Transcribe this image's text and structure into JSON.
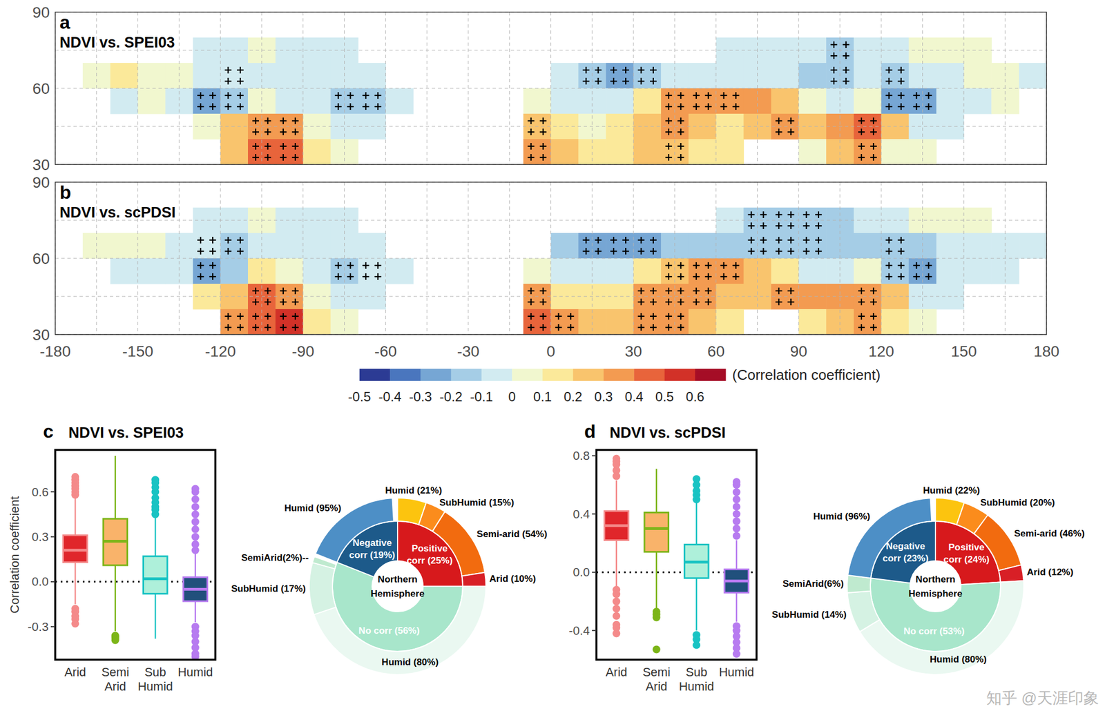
{
  "watermark": "知乎 @天涯印象",
  "colorbar": {
    "label": "(Correlation coefficient)",
    "range": [
      -0.5,
      0.7
    ],
    "ticks": [
      -0.5,
      -0.4,
      -0.3,
      -0.2,
      -0.1,
      0,
      0.1,
      0.2,
      0.3,
      0.4,
      0.5,
      0.6
    ],
    "colors": [
      "#2c3b94",
      "#4a76be",
      "#76a6d4",
      "#a5cde6",
      "#d2ebf1",
      "#f1f7cf",
      "#fbe99a",
      "#f9c46d",
      "#f39b51",
      "#e8643b",
      "#d23128",
      "#a50d26"
    ]
  },
  "chart_data": [
    {
      "type": "heatmap",
      "label": "a",
      "title": "NDVI vs. SPEI03",
      "cell_lon": [
        -180,
        -170,
        -160,
        -150,
        -140,
        -130,
        -120,
        -110,
        -100,
        -90,
        -80,
        -70,
        -60,
        -50,
        -40,
        -30,
        -20,
        -10,
        0,
        10,
        20,
        30,
        40,
        50,
        60,
        70,
        80,
        90,
        100,
        110,
        120,
        130,
        140,
        150,
        160,
        170
      ],
      "cell_lat": [
        80,
        70,
        60,
        50,
        40,
        30
      ],
      "cells": [
        [
          null,
          null,
          null,
          null,
          null,
          null,
          null,
          null,
          null,
          null,
          null,
          null,
          null,
          null,
          null,
          null,
          null,
          null,
          null,
          null,
          null,
          null,
          null,
          null,
          null,
          null,
          null,
          null,
          null,
          null,
          null,
          null,
          null,
          null,
          null,
          null
        ],
        [
          null,
          null,
          null,
          null,
          null,
          -0.05,
          -0.05,
          0,
          -0.05,
          -0.1,
          -0.05,
          null,
          null,
          null,
          null,
          null,
          null,
          null,
          null,
          null,
          null,
          null,
          null,
          null,
          -0.05,
          -0.1,
          -0.05,
          -0.1,
          -0.2,
          -0.1,
          -0.05,
          0,
          0.05,
          0,
          null,
          null
        ],
        [
          null,
          0.05,
          0.1,
          0.05,
          0,
          -0.05,
          -0.1,
          -0.05,
          -0.1,
          -0.05,
          -0.1,
          -0.1,
          null,
          null,
          null,
          null,
          null,
          null,
          -0.1,
          -0.2,
          -0.25,
          -0.2,
          -0.1,
          -0.05,
          -0.05,
          -0.1,
          -0.1,
          -0.15,
          -0.2,
          -0.1,
          -0.15,
          -0.1,
          -0.05,
          0,
          0,
          -0.05
        ],
        [
          null,
          null,
          -0.05,
          0,
          -0.1,
          -0.25,
          -0.15,
          0.05,
          -0.05,
          -0.1,
          -0.15,
          -0.15,
          -0.1,
          null,
          null,
          null,
          null,
          0,
          -0.05,
          -0.1,
          -0.05,
          0.15,
          0.3,
          0.3,
          0.35,
          0.3,
          0.2,
          0,
          -0.1,
          0,
          -0.3,
          -0.25,
          -0.1,
          -0.05,
          0,
          null
        ],
        [
          null,
          null,
          null,
          null,
          null,
          0.05,
          0.2,
          0.35,
          0.3,
          0,
          -0.05,
          -0.1,
          null,
          null,
          null,
          null,
          null,
          0.2,
          0.1,
          0,
          0.1,
          0.2,
          0.3,
          0.2,
          0.15,
          0.2,
          0.3,
          0.25,
          0.3,
          0.45,
          0.2,
          -0.1,
          -0.05,
          null,
          null,
          null
        ],
        [
          null,
          null,
          null,
          null,
          null,
          null,
          0.2,
          0.4,
          0.45,
          0.1,
          0.05,
          null,
          null,
          null,
          null,
          null,
          null,
          0.3,
          0.2,
          0.1,
          0.15,
          0.2,
          0.25,
          0.15,
          0.1,
          null,
          null,
          0.05,
          0.2,
          0.3,
          0.05,
          0,
          null,
          null,
          null,
          null
        ]
      ],
      "significant": [
        [
          100,
          70
        ],
        [
          10,
          60
        ],
        [
          20,
          60
        ],
        [
          30,
          60
        ],
        [
          100,
          60
        ],
        [
          120,
          60
        ],
        [
          -120,
          60
        ],
        [
          -130,
          50
        ],
        [
          -120,
          50
        ],
        [
          -80,
          50
        ],
        [
          -70,
          50
        ],
        [
          40,
          50
        ],
        [
          50,
          50
        ],
        [
          60,
          50
        ],
        [
          120,
          50
        ],
        [
          130,
          50
        ],
        [
          -110,
          40
        ],
        [
          -100,
          40
        ],
        [
          -10,
          40
        ],
        [
          40,
          40
        ],
        [
          80,
          40
        ],
        [
          110,
          40
        ],
        [
          -110,
          30
        ],
        [
          -100,
          30
        ],
        [
          -10,
          30
        ],
        [
          40,
          30
        ],
        [
          110,
          30
        ]
      ],
      "xlim": [
        -180,
        180
      ],
      "xticks": [
        -180,
        -150,
        -120,
        -90,
        -60,
        -30,
        0,
        30,
        60,
        90,
        120,
        150,
        180
      ],
      "ylim": [
        30,
        90
      ],
      "yticks": [
        30,
        60,
        90
      ],
      "grid": true,
      "tick_labels": "y"
    },
    {
      "type": "heatmap",
      "label": "b",
      "title": "NDVI vs. scPDSI",
      "cell_lon": [
        -180,
        -170,
        -160,
        -150,
        -140,
        -130,
        -120,
        -110,
        -100,
        -90,
        -80,
        -70,
        -60,
        -50,
        -40,
        -30,
        -20,
        -10,
        0,
        10,
        20,
        30,
        40,
        50,
        60,
        70,
        80,
        90,
        100,
        110,
        120,
        130,
        140,
        150,
        160,
        170
      ],
      "cell_lat": [
        80,
        70,
        60,
        50,
        40,
        30
      ],
      "cells": [
        [
          null,
          null,
          null,
          null,
          null,
          null,
          null,
          null,
          null,
          null,
          null,
          null,
          null,
          null,
          null,
          null,
          null,
          null,
          null,
          null,
          null,
          null,
          null,
          null,
          null,
          null,
          null,
          null,
          null,
          null,
          null,
          null,
          null,
          null,
          null,
          null
        ],
        [
          null,
          null,
          null,
          null,
          null,
          -0.05,
          -0.05,
          0,
          -0.05,
          -0.1,
          -0.05,
          null,
          null,
          null,
          null,
          null,
          null,
          null,
          null,
          null,
          null,
          null,
          null,
          null,
          -0.05,
          -0.15,
          -0.15,
          -0.15,
          -0.15,
          -0.1,
          -0.05,
          0,
          0.05,
          0,
          null,
          null
        ],
        [
          null,
          0,
          0.05,
          0,
          -0.05,
          -0.1,
          -0.15,
          -0.1,
          -0.1,
          -0.05,
          -0.1,
          -0.1,
          null,
          null,
          null,
          null,
          null,
          null,
          -0.15,
          -0.25,
          -0.3,
          -0.25,
          -0.2,
          -0.15,
          -0.15,
          -0.2,
          -0.2,
          -0.2,
          -0.2,
          -0.15,
          -0.2,
          -0.15,
          -0.1,
          -0.05,
          -0.05,
          -0.1
        ],
        [
          null,
          null,
          -0.05,
          -0.05,
          -0.1,
          -0.3,
          -0.2,
          0.1,
          0,
          -0.1,
          -0.15,
          -0.1,
          -0.1,
          null,
          null,
          null,
          null,
          0,
          -0.05,
          -0.1,
          -0.1,
          0.1,
          0.25,
          0.3,
          0.3,
          0.25,
          0.15,
          -0.05,
          -0.1,
          0,
          -0.2,
          -0.25,
          -0.1,
          -0.1,
          -0.05,
          null
        ],
        [
          null,
          null,
          null,
          null,
          null,
          0.1,
          0.25,
          0.4,
          0.35,
          0.05,
          -0.05,
          -0.1,
          null,
          null,
          null,
          null,
          null,
          0.3,
          0.15,
          0.1,
          0.15,
          0.3,
          0.35,
          0.3,
          0.2,
          0.25,
          0.35,
          0.3,
          0.3,
          0.35,
          0.2,
          -0.1,
          -0.05,
          null,
          null,
          null
        ],
        [
          null,
          null,
          null,
          null,
          null,
          null,
          0.35,
          0.45,
          0.5,
          0.15,
          0.05,
          null,
          null,
          null,
          null,
          null,
          null,
          0.4,
          0.35,
          0.2,
          0.2,
          0.3,
          0.3,
          0.2,
          0.1,
          null,
          null,
          0.1,
          0.2,
          0.3,
          0.1,
          0,
          null,
          null,
          null,
          null
        ]
      ],
      "significant": [
        [
          70,
          70
        ],
        [
          80,
          70
        ],
        [
          90,
          70
        ],
        [
          -130,
          60
        ],
        [
          -120,
          60
        ],
        [
          10,
          60
        ],
        [
          20,
          60
        ],
        [
          30,
          60
        ],
        [
          70,
          60
        ],
        [
          80,
          60
        ],
        [
          90,
          60
        ],
        [
          120,
          60
        ],
        [
          -130,
          50
        ],
        [
          -80,
          50
        ],
        [
          -70,
          50
        ],
        [
          40,
          50
        ],
        [
          50,
          50
        ],
        [
          60,
          50
        ],
        [
          120,
          50
        ],
        [
          130,
          50
        ],
        [
          -110,
          40
        ],
        [
          -100,
          40
        ],
        [
          -10,
          40
        ],
        [
          30,
          40
        ],
        [
          40,
          40
        ],
        [
          50,
          40
        ],
        [
          80,
          40
        ],
        [
          110,
          40
        ],
        [
          -120,
          30
        ],
        [
          -110,
          30
        ],
        [
          -100,
          30
        ],
        [
          -10,
          30
        ],
        [
          0,
          30
        ],
        [
          30,
          30
        ],
        [
          40,
          30
        ],
        [
          110,
          30
        ]
      ],
      "xlim": [
        -180,
        180
      ],
      "xticks": [
        -180,
        -150,
        -120,
        -90,
        -60,
        -30,
        0,
        30,
        60,
        90,
        120,
        150,
        180
      ],
      "ylim": [
        30,
        90
      ],
      "yticks": [
        30,
        60,
        90
      ],
      "grid": true,
      "tick_labels": true
    },
    {
      "type": "boxplot",
      "label": "c",
      "title": "NDVI vs. SPEI03",
      "y_label": "Correlation coefficient",
      "categories": [
        "Arid",
        "Semi Arid",
        "Sub Humid",
        "Humid"
      ],
      "boxes": [
        {
          "min": -0.15,
          "q1": 0.13,
          "median": 0.21,
          "q3": 0.31,
          "max": 0.56,
          "outliers": [
            -0.18,
            -0.2,
            -0.23,
            -0.25,
            -0.28,
            0.58,
            0.6,
            0.62,
            0.64,
            0.66,
            0.68,
            0.7
          ],
          "color": "#f48a8a"
        },
        {
          "min": -0.33,
          "q1": 0.11,
          "median": 0.27,
          "q3": 0.42,
          "max": 0.84,
          "outliers": [
            -0.36,
            -0.37,
            -0.38,
            -0.39
          ],
          "color": "#7cb518"
        },
        {
          "min": -0.38,
          "q1": -0.08,
          "median": 0.02,
          "q3": 0.17,
          "max": 0.43,
          "outliers": [
            0.45,
            0.48,
            0.5,
            0.53,
            0.56,
            0.6,
            0.63,
            0.66,
            0.68
          ],
          "color": "#19c3c3"
        },
        {
          "min": -0.27,
          "q1": -0.13,
          "median": -0.05,
          "q3": 0.03,
          "max": 0.19,
          "outliers": [
            -0.3,
            -0.33,
            -0.36,
            -0.4,
            -0.44,
            -0.48,
            -0.5,
            0.21,
            0.25,
            0.3,
            0.35,
            0.4,
            0.45,
            0.5,
            0.55,
            0.6,
            0.62
          ],
          "color": "#b77bf0"
        }
      ],
      "ylim": [
        -0.52,
        0.88
      ],
      "yticks": [
        -0.3,
        {
          "value": 0,
          "label": "0.0"
        },
        0.3,
        0.6
      ],
      "hline": 0
    },
    {
      "type": "donut",
      "center_label": "Northern Hemisphere",
      "inner": {
        "values": [
          25,
          56,
          19
        ],
        "value_labels": [
          "Positive corr (25%)",
          "No corr (56%)",
          "Negative corr (19%)"
        ],
        "colors": [
          "#d7191c",
          "#a8e6cb",
          "#1d5a8a"
        ]
      },
      "outer": [
        {
          "values": [
            21,
            15,
            54,
            10
          ],
          "value_labels": [
            "Humid (21%)",
            "SubHumid (15%)",
            "Semi-arid (54%)",
            "Arid (10%)"
          ],
          "colors": [
            "#fcc40f",
            "#fb8c1c",
            "#f26b0f",
            "#d81f26"
          ]
        },
        {
          "values": [
            80,
            17,
            2
          ],
          "value_labels": [
            "Humid (80%)",
            "SubHumid (17%)",
            "SemiArid(2%)--"
          ],
          "colors": [
            "#eaf8f1",
            "#d5f2e3",
            "#bfeacf"
          ]
        },
        {
          "values": [
            95
          ],
          "value_labels": [
            "Humid (95%)"
          ],
          "colors": [
            "#4d8fc6"
          ]
        }
      ]
    },
    {
      "type": "boxplot",
      "label": "d",
      "title": "NDVI vs. scPDSI",
      "categories": [
        "Arid",
        "Semi Arid",
        "Sub Humid",
        "Humid"
      ],
      "boxes": [
        {
          "min": -0.1,
          "q1": 0.22,
          "median": 0.32,
          "q3": 0.42,
          "max": 0.63,
          "outliers": [
            -0.12,
            -0.15,
            -0.2,
            -0.25,
            -0.3,
            -0.36,
            -0.38,
            -0.42,
            0.66,
            0.7,
            0.74,
            0.76,
            0.78
          ],
          "color": "#f48a8a"
        },
        {
          "min": -0.25,
          "q1": 0.14,
          "median": 0.3,
          "q3": 0.41,
          "max": 0.71,
          "outliers": [
            -0.27,
            -0.29,
            -0.31,
            -0.53
          ],
          "color": "#7cb518"
        },
        {
          "min": -0.4,
          "q1": -0.04,
          "median": 0.07,
          "q3": 0.19,
          "max": 0.48,
          "outliers": [
            -0.43,
            -0.46,
            -0.5,
            0.5,
            0.53,
            0.56,
            0.6,
            0.64
          ],
          "color": "#19c3c3"
        },
        {
          "min": -0.34,
          "q1": -0.14,
          "median": -0.06,
          "q3": 0.02,
          "max": 0.22,
          "outliers": [
            -0.37,
            -0.4,
            -0.44,
            -0.48,
            -0.52,
            -0.56,
            0.25,
            0.3,
            0.35,
            0.4,
            0.45,
            0.5,
            0.55,
            0.6,
            0.62
          ],
          "color": "#b77bf0"
        }
      ],
      "ylim": [
        -0.6,
        0.84
      ],
      "yticks": [
        -0.4,
        {
          "value": 0,
          "label": "0.0"
        },
        0.4,
        0.8
      ],
      "hline": 0
    },
    {
      "type": "donut",
      "center_label": "Northern Hemisphere",
      "inner": {
        "values": [
          24,
          53,
          23
        ],
        "value_labels": [
          "Positive corr (24%)",
          "No corr (53%)",
          "Negative corr (23%)"
        ],
        "colors": [
          "#d7191c",
          "#a8e6cb",
          "#1d5a8a"
        ]
      },
      "outer": [
        {
          "values": [
            22,
            20,
            46,
            12
          ],
          "value_labels": [
            "Humid (22%)",
            "SubHumid (20%)",
            "Semi-arid (46%)",
            "Arid (12%)"
          ],
          "colors": [
            "#fcc40f",
            "#fb8c1c",
            "#f26b0f",
            "#d81f26"
          ]
        },
        {
          "values": [
            80,
            14,
            6
          ],
          "value_labels": [
            "Humid (80%)",
            "SubHumid (14%)",
            "SemiArid(6%)"
          ],
          "colors": [
            "#eaf8f1",
            "#d5f2e3",
            "#bfeacf"
          ]
        },
        {
          "values": [
            96
          ],
          "value_labels": [
            "Humid (96%)"
          ],
          "colors": [
            "#4d8fc6"
          ]
        }
      ]
    }
  ]
}
